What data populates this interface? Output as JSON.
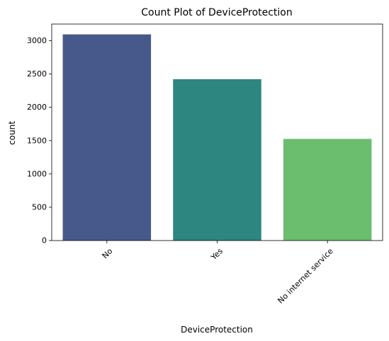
{
  "chart_data": {
    "type": "bar",
    "title": "Count Plot of DeviceProtection",
    "xlabel": "DeviceProtection",
    "ylabel": "count",
    "categories": [
      "No",
      "Yes",
      "No internet service"
    ],
    "values": [
      3095,
      2422,
      1526
    ],
    "ylim": [
      0,
      3250
    ],
    "yticks": [
      0,
      500,
      1000,
      1500,
      2000,
      2500,
      3000
    ],
    "colors": [
      "#46598a",
      "#2e8680",
      "#6abe6e"
    ],
    "x_tick_rotation": 45,
    "grid": false,
    "legend": "none"
  }
}
